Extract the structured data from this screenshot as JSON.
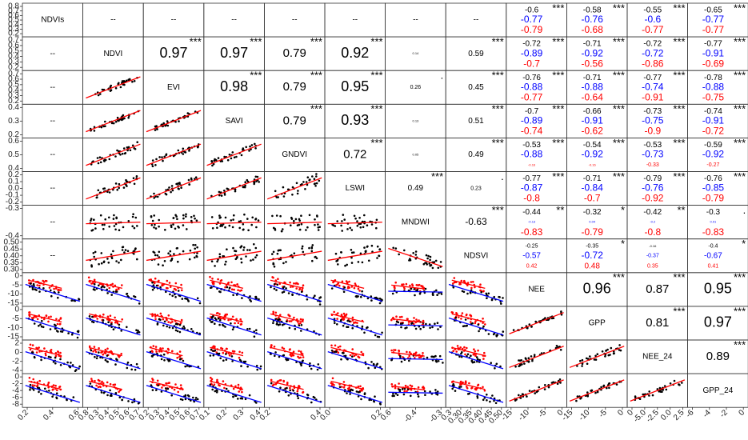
{
  "chart_data": {
    "type": "scatter",
    "variables": [
      "NDVIs",
      "NDVI",
      "EVI",
      "SAVI",
      "GNDVI",
      "LSWI",
      "MNDWI",
      "NDSVI",
      "NEE",
      "GPP",
      "NEE_24",
      "GPP_24"
    ],
    "placeholder": "--",
    "series_colors": {
      "all": "#000000",
      "group_a": "#ff0000",
      "group_b": "#0000ff"
    },
    "upper_cells": [
      {
        "row": 0,
        "col": 1,
        "text": "--",
        "size": "s"
      },
      {
        "row": 0,
        "col": 2,
        "text": "--",
        "size": "s"
      },
      {
        "row": 0,
        "col": 3,
        "text": "--",
        "size": "s"
      },
      {
        "row": 0,
        "col": 4,
        "text": "--",
        "size": "s"
      },
      {
        "row": 0,
        "col": 5,
        "text": "--",
        "size": "s"
      },
      {
        "row": 0,
        "col": 6,
        "text": "--",
        "size": "s"
      },
      {
        "row": 0,
        "col": 7,
        "text": "--",
        "size": "s"
      },
      {
        "row": 1,
        "col": 2,
        "text": "0.97",
        "size": "xl",
        "stars": "***"
      },
      {
        "row": 1,
        "col": 3,
        "text": "0.97",
        "size": "xl",
        "stars": "***"
      },
      {
        "row": 1,
        "col": 4,
        "text": "0.79",
        "size": "l",
        "stars": "***"
      },
      {
        "row": 1,
        "col": 5,
        "text": "0.92",
        "size": "xl",
        "stars": "***"
      },
      {
        "row": 1,
        "col": 6,
        "text": "0.14",
        "size": "xxs"
      },
      {
        "row": 1,
        "col": 7,
        "text": "0.59",
        "size": "s",
        "stars": "***"
      },
      {
        "row": 2,
        "col": 3,
        "text": "0.98",
        "size": "xl",
        "stars": "***"
      },
      {
        "row": 2,
        "col": 4,
        "text": "0.79",
        "size": "l",
        "stars": "***"
      },
      {
        "row": 2,
        "col": 5,
        "text": "0.95",
        "size": "xl",
        "stars": "***"
      },
      {
        "row": 2,
        "col": 6,
        "text": "0.26",
        "size": "xs",
        "stars": "."
      },
      {
        "row": 2,
        "col": 7,
        "text": "0.45",
        "size": "s",
        "stars": "***"
      },
      {
        "row": 3,
        "col": 4,
        "text": "0.79",
        "size": "l",
        "stars": "***"
      },
      {
        "row": 3,
        "col": 5,
        "text": "0.93",
        "size": "xl",
        "stars": "***"
      },
      {
        "row": 3,
        "col": 6,
        "text": "0.13",
        "size": "xxs"
      },
      {
        "row": 3,
        "col": 7,
        "text": "0.51",
        "size": "s",
        "stars": "***"
      },
      {
        "row": 4,
        "col": 5,
        "text": "0.72",
        "size": "l",
        "stars": "***"
      },
      {
        "row": 4,
        "col": 6,
        "text": "0.05",
        "size": "xxs"
      },
      {
        "row": 4,
        "col": 7,
        "text": "0.49",
        "size": "s",
        "stars": "***"
      },
      {
        "row": 5,
        "col": 6,
        "text": "0.49",
        "size": "s",
        "stars": "***"
      },
      {
        "row": 5,
        "col": 7,
        "text": "0.23",
        "size": "xs",
        "stars": "."
      },
      {
        "row": 6,
        "col": 7,
        "text": "-0.63",
        "size": "m",
        "stars": "***"
      },
      {
        "row": 8,
        "col": 9,
        "text": "0.96",
        "size": "xl",
        "stars": "***"
      },
      {
        "row": 8,
        "col": 10,
        "text": "0.87",
        "size": "l",
        "stars": "***"
      },
      {
        "row": 8,
        "col": 11,
        "text": "0.95",
        "size": "xl",
        "stars": "***"
      },
      {
        "row": 9,
        "col": 10,
        "text": "0.81",
        "size": "l",
        "stars": "***"
      },
      {
        "row": 9,
        "col": 11,
        "text": "0.97",
        "size": "xl",
        "stars": "***"
      },
      {
        "row": 10,
        "col": 11,
        "text": "0.89",
        "size": "l",
        "stars": "***"
      }
    ],
    "grouped_cells": [
      {
        "row": 0,
        "col": 8,
        "all": "-0.6",
        "a": "-0.79",
        "b": "-0.77",
        "stars": "***"
      },
      {
        "row": 0,
        "col": 9,
        "all": "-0.58",
        "a": "-0.68",
        "b": "-0.76",
        "stars": "***"
      },
      {
        "row": 0,
        "col": 10,
        "all": "-0.55",
        "a": "-0.77",
        "b": "-0.6",
        "stars": "***"
      },
      {
        "row": 0,
        "col": 11,
        "all": "-0.65",
        "a": "-0.77",
        "b": "-0.77",
        "stars": "***"
      },
      {
        "row": 1,
        "col": 8,
        "all": "-0.72",
        "a": "-0.7",
        "b": "-0.89",
        "stars": "***"
      },
      {
        "row": 1,
        "col": 9,
        "all": "-0.71",
        "a": "-0.56",
        "b": "-0.92",
        "stars": "***"
      },
      {
        "row": 1,
        "col": 10,
        "all": "-0.72",
        "a": "-0.86",
        "b": "-0.72",
        "stars": "***"
      },
      {
        "row": 1,
        "col": 11,
        "all": "-0.77",
        "a": "-0.69",
        "b": "-0.91",
        "stars": "***"
      },
      {
        "row": 2,
        "col": 8,
        "all": "-0.76",
        "a": "-0.77",
        "b": "-0.88",
        "stars": "***"
      },
      {
        "row": 2,
        "col": 9,
        "all": "-0.71",
        "a": "-0.64",
        "b": "-0.88",
        "stars": "***"
      },
      {
        "row": 2,
        "col": 10,
        "all": "-0.77",
        "a": "-0.91",
        "b": "-0.74",
        "stars": "***"
      },
      {
        "row": 2,
        "col": 11,
        "all": "-0.78",
        "a": "-0.75",
        "b": "-0.88",
        "stars": "***"
      },
      {
        "row": 3,
        "col": 8,
        "all": "-0.7",
        "a": "-0.74",
        "b": "-0.89",
        "stars": "***"
      },
      {
        "row": 3,
        "col": 9,
        "all": "-0.66",
        "a": "-0.62",
        "b": "-0.91",
        "stars": "***"
      },
      {
        "row": 3,
        "col": 10,
        "all": "-0.73",
        "a": "-0.9",
        "b": "-0.75",
        "stars": "***"
      },
      {
        "row": 3,
        "col": 11,
        "all": "-0.74",
        "a": "-0.72",
        "b": "-0.91",
        "stars": "***"
      },
      {
        "row": 4,
        "col": 8,
        "all": "-0.53",
        "a": "-0.16",
        "b": "-0.88",
        "stars": "***",
        "a_size": "xxs"
      },
      {
        "row": 4,
        "col": 9,
        "all": "-0.54",
        "a": "-0.16",
        "b": "-0.92",
        "stars": "***",
        "a_size": "xxs"
      },
      {
        "row": 4,
        "col": 10,
        "all": "-0.53",
        "a": "-0.33",
        "b": "-0.73",
        "stars": "***",
        "a_size": "xs"
      },
      {
        "row": 4,
        "col": 11,
        "all": "-0.59",
        "a": "-0.27",
        "b": "-0.92",
        "stars": "***",
        "a_size": "xs"
      },
      {
        "row": 5,
        "col": 8,
        "all": "-0.77",
        "a": "-0.8",
        "b": "-0.87",
        "stars": "***"
      },
      {
        "row": 5,
        "col": 9,
        "all": "-0.71",
        "a": "-0.7",
        "b": "-0.84",
        "stars": "***"
      },
      {
        "row": 5,
        "col": 10,
        "all": "-0.79",
        "a": "-0.92",
        "b": "-0.76",
        "stars": "***"
      },
      {
        "row": 5,
        "col": 11,
        "all": "-0.76",
        "a": "-0.79",
        "b": "-0.85",
        "stars": "***"
      },
      {
        "row": 6,
        "col": 8,
        "all": "-0.44",
        "a": "-0.83",
        "b": "-0.13",
        "stars": "**",
        "b_size": "xxs"
      },
      {
        "row": 6,
        "col": 9,
        "all": "-0.32",
        "a": "-0.79",
        "b": "0.04",
        "stars": "*",
        "b_size": "xxs"
      },
      {
        "row": 6,
        "col": 10,
        "all": "-0.42",
        "a": "-0.8",
        "b": "-0.2",
        "stars": "**",
        "b_size": "xxs"
      },
      {
        "row": 6,
        "col": 11,
        "all": "-0.3",
        "a": "-0.83",
        "b": "0.01",
        "stars": ".",
        "b_size": "xxs"
      },
      {
        "row": 7,
        "col": 8,
        "all": "-0.25",
        "a": "0.42",
        "b": "-0.57",
        "stars": "",
        "all_size": "xs",
        "a_size": "xs",
        "b_size": "s"
      },
      {
        "row": 7,
        "col": 9,
        "all": "-0.35",
        "a": "0.48",
        "b": "-0.72",
        "stars": "*",
        "all_size": "xs",
        "a_size": "s"
      },
      {
        "row": 7,
        "col": 10,
        "all": "-0.16",
        "a": "0.35",
        "b": "-0.37",
        "stars": "",
        "all_size": "xxs",
        "a_size": "xs",
        "b_size": "xs"
      },
      {
        "row": 7,
        "col": 11,
        "all": "-0.4",
        "a": "0.41",
        "b": "-0.67",
        "stars": "*",
        "all_size": "xs",
        "a_size": "xs",
        "b_size": "s"
      }
    ],
    "y_axes": [
      {
        "row": 0,
        "ticks": [
          "0.8",
          "0.7",
          "0.6",
          "0.5",
          "0.4",
          "0.3",
          "0.2"
        ]
      },
      {
        "row": 1,
        "ticks": [
          "0.7",
          "0.6",
          "0.5",
          "0.4",
          "0.3",
          "0.2"
        ]
      },
      {
        "row": 2,
        "ticks": [
          "0.7",
          "0.6",
          "0.5",
          "0.4",
          "0.3",
          "0.2"
        ]
      },
      {
        "row": 3,
        "ticks": [
          "0.4",
          "0.3",
          "0.2"
        ]
      },
      {
        "row": 4,
        "ticks": [
          "0.6",
          "0.5",
          "0.4"
        ]
      },
      {
        "row": 5,
        "ticks": [
          "0.2",
          "0.1",
          "0.0",
          "-0.1",
          "-0.2"
        ]
      },
      {
        "row": 6,
        "ticks": [
          "-0.3",
          "-0.4"
        ]
      },
      {
        "row": 7,
        "ticks": [
          "0.50",
          "0.45",
          "0.40",
          "0.35",
          "0.30"
        ]
      },
      {
        "row": 8,
        "ticks": [
          "0",
          "-5",
          "-10",
          "-15"
        ]
      },
      {
        "row": 9,
        "ticks": [
          "0",
          "-5",
          "-10",
          "-15"
        ]
      },
      {
        "row": 10,
        "ticks": [
          "2",
          "0",
          "-2",
          "-4"
        ]
      },
      {
        "row": 11,
        "ticks": [
          "0",
          "-2",
          "-4",
          "-6",
          "-8"
        ]
      }
    ],
    "x_axes": [
      {
        "col": 0,
        "ticks": [
          "0.2",
          "0.4",
          "0.6"
        ]
      },
      {
        "col": 1,
        "ticks": [
          "0.8",
          "0.3",
          "0.4",
          "0.5",
          "0.6",
          "0.7"
        ]
      },
      {
        "col": 2,
        "ticks": [
          "0.2",
          "0.3",
          "0.4",
          "0.5",
          "0.6",
          "0.7"
        ]
      },
      {
        "col": 3,
        "ticks": [
          "0.1",
          "0.2",
          "0.3",
          "0.4"
        ]
      },
      {
        "col": 4,
        "ticks": [
          "0.2",
          "0.4"
        ]
      },
      {
        "col": 5,
        "ticks": [
          "0.0",
          "0.2"
        ]
      },
      {
        "col": 6,
        "ticks": [
          "0.6",
          "-0.4",
          "-0.3"
        ]
      },
      {
        "col": 7,
        "ticks": [
          "0.3",
          "0.30",
          "0.35",
          "0.40",
          "0.45",
          "0.50"
        ]
      },
      {
        "col": 8,
        "ticks": [
          "-15",
          "-10",
          "-5",
          "0"
        ]
      },
      {
        "col": 9,
        "ticks": [
          "-15",
          "-10",
          "-5",
          "0"
        ]
      },
      {
        "col": 10,
        "ticks": [
          "0",
          "-5.0",
          "-2.5",
          "0.0",
          "2.5"
        ]
      },
      {
        "col": 11,
        "ticks": [
          "-6",
          "-4",
          "-2",
          "0"
        ]
      }
    ],
    "lower_cells": [
      {
        "row": 1,
        "col": 0,
        "text": "--"
      },
      {
        "row": 2,
        "col": 0,
        "text": "--"
      },
      {
        "row": 3,
        "col": 0,
        "text": "--"
      },
      {
        "row": 4,
        "col": 0,
        "text": "--"
      },
      {
        "row": 5,
        "col": 0,
        "text": "--"
      },
      {
        "row": 6,
        "col": 0,
        "text": "--"
      },
      {
        "row": 7,
        "col": 0,
        "text": "--"
      }
    ],
    "scatter_cells": [
      {
        "row": 2,
        "col": 1,
        "trend": "pos",
        "spread": 0.08
      },
      {
        "row": 3,
        "col": 1,
        "trend": "pos",
        "spread": 0.08
      },
      {
        "row": 3,
        "col": 2,
        "trend": "pos",
        "spread": 0.07
      },
      {
        "row": 4,
        "col": 1,
        "trend": "pos",
        "spread": 0.1
      },
      {
        "row": 4,
        "col": 2,
        "trend": "pos",
        "spread": 0.1
      },
      {
        "row": 4,
        "col": 3,
        "trend": "pos",
        "spread": 0.1
      },
      {
        "row": 5,
        "col": 1,
        "trend": "pos",
        "spread": 0.12
      },
      {
        "row": 5,
        "col": 2,
        "trend": "pos",
        "spread": 0.1
      },
      {
        "row": 5,
        "col": 3,
        "trend": "pos",
        "spread": 0.1
      },
      {
        "row": 5,
        "col": 4,
        "trend": "pos",
        "spread": 0.2
      },
      {
        "row": 6,
        "col": 1,
        "trend": "flat",
        "spread": 0.25
      },
      {
        "row": 6,
        "col": 2,
        "trend": "flat",
        "spread": 0.25
      },
      {
        "row": 6,
        "col": 3,
        "trend": "flat",
        "spread": 0.25
      },
      {
        "row": 6,
        "col": 4,
        "trend": "flat",
        "spread": 0.25
      },
      {
        "row": 6,
        "col": 5,
        "trend": "flat",
        "spread": 0.25
      },
      {
        "row": 7,
        "col": 1,
        "trend": "wpos",
        "spread": 0.25
      },
      {
        "row": 7,
        "col": 2,
        "trend": "wpos",
        "spread": 0.25
      },
      {
        "row": 7,
        "col": 3,
        "trend": "wpos",
        "spread": 0.25
      },
      {
        "row": 7,
        "col": 4,
        "trend": "wpos",
        "spread": 0.25
      },
      {
        "row": 7,
        "col": 5,
        "trend": "wpos",
        "spread": 0.25
      },
      {
        "row": 7,
        "col": 6,
        "trend": "neg",
        "spread": 0.18
      },
      {
        "row": 9,
        "col": 8,
        "trend": "pos",
        "spread": 0.06
      },
      {
        "row": 10,
        "col": 8,
        "trend": "pos",
        "spread": 0.1
      },
      {
        "row": 10,
        "col": 9,
        "trend": "pos",
        "spread": 0.1
      },
      {
        "row": 11,
        "col": 8,
        "trend": "pos",
        "spread": 0.07
      },
      {
        "row": 11,
        "col": 9,
        "trend": "pos",
        "spread": 0.07
      },
      {
        "row": 11,
        "col": 10,
        "trend": "pos",
        "spread": 0.1
      }
    ],
    "grouped_scatter_cells": [
      {
        "row": 8,
        "col": 0
      },
      {
        "row": 8,
        "col": 1
      },
      {
        "row": 8,
        "col": 2
      },
      {
        "row": 8,
        "col": 3
      },
      {
        "row": 8,
        "col": 4
      },
      {
        "row": 8,
        "col": 5
      },
      {
        "row": 8,
        "col": 6
      },
      {
        "row": 8,
        "col": 7
      },
      {
        "row": 9,
        "col": 0
      },
      {
        "row": 9,
        "col": 1
      },
      {
        "row": 9,
        "col": 2
      },
      {
        "row": 9,
        "col": 3
      },
      {
        "row": 9,
        "col": 4
      },
      {
        "row": 9,
        "col": 5
      },
      {
        "row": 9,
        "col": 6
      },
      {
        "row": 9,
        "col": 7
      },
      {
        "row": 10,
        "col": 0
      },
      {
        "row": 10,
        "col": 1
      },
      {
        "row": 10,
        "col": 2
      },
      {
        "row": 10,
        "col": 3
      },
      {
        "row": 10,
        "col": 4
      },
      {
        "row": 10,
        "col": 5
      },
      {
        "row": 10,
        "col": 6
      },
      {
        "row": 10,
        "col": 7
      },
      {
        "row": 11,
        "col": 0
      },
      {
        "row": 11,
        "col": 1
      },
      {
        "row": 11,
        "col": 2
      },
      {
        "row": 11,
        "col": 3
      },
      {
        "row": 11,
        "col": 4
      },
      {
        "row": 11,
        "col": 5
      },
      {
        "row": 11,
        "col": 6
      },
      {
        "row": 11,
        "col": 7
      }
    ]
  }
}
